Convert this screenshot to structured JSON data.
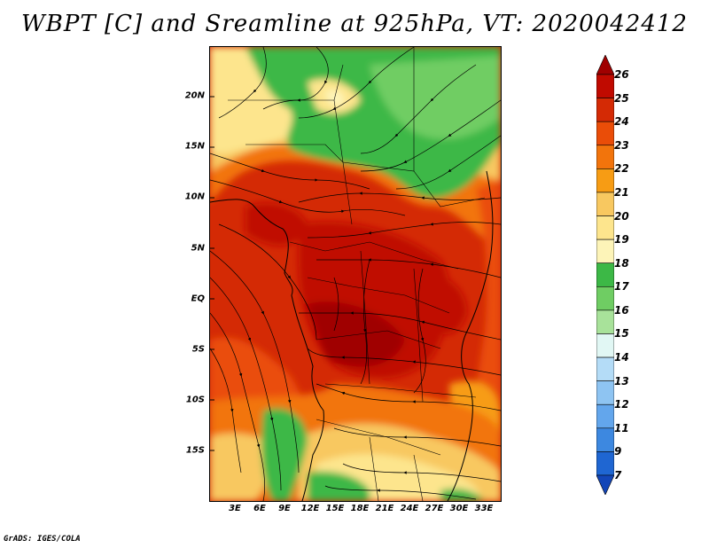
{
  "title": "WBPT [C] and Sreamline at 925hPa, VT: 2020042412",
  "footer": "GrADS: IGES/COLA",
  "map": {
    "variable": "Wet-bulb potential temperature with streamlines",
    "lat_labels": [
      "20N",
      "15N",
      "10N",
      "5N",
      "EQ",
      "5S",
      "10S",
      "15S"
    ],
    "lon_labels": [
      "3E",
      "6E",
      "9E",
      "12E",
      "15E",
      "18E",
      "21E",
      "24E",
      "27E",
      "30E",
      "33E"
    ]
  },
  "colorbar": {
    "labels": [
      "26",
      "25",
      "24",
      "23",
      "22",
      "21",
      "20",
      "19",
      "18",
      "17",
      "16",
      "15",
      "14",
      "13",
      "12",
      "11",
      "9",
      "7"
    ],
    "colors": [
      "#a00000",
      "#c00a00",
      "#d42a05",
      "#ea4d08",
      "#f2740c",
      "#f79c14",
      "#f8c860",
      "#fde58d",
      "#fdf4b8",
      "#3cb846",
      "#6fcd63",
      "#a8e29a",
      "#e1f7f4",
      "#b4dcf7",
      "#8ec4f2",
      "#63a6ec",
      "#3d88e0",
      "#1f66d2",
      "#1346b8"
    ]
  }
}
